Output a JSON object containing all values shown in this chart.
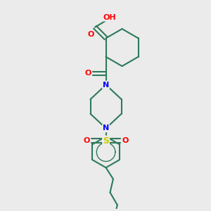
{
  "bg_color": "#ebebeb",
  "bond_color": "#2d7a5a",
  "N_color": "#0000ff",
  "O_color": "#ff0000",
  "S_color": "#cccc00",
  "font_size": 8,
  "linewidth": 1.5,
  "figsize": [
    3.0,
    3.0
  ],
  "dpi": 100,
  "xlim": [
    0,
    10
  ],
  "ylim": [
    0,
    10
  ]
}
